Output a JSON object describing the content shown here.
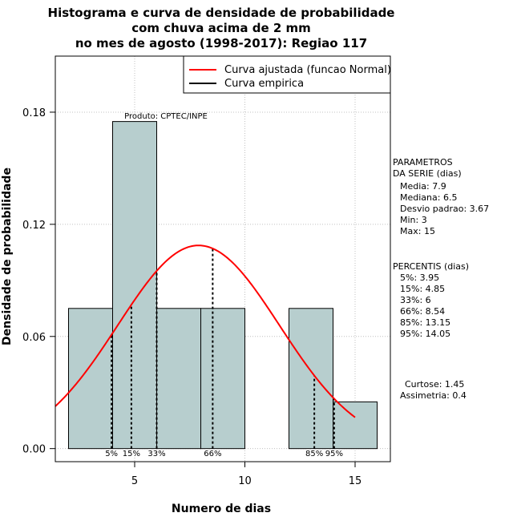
{
  "chart_data": {
    "type": "bar",
    "title_lines": [
      "Histograma e curva de densidade de probabilidade",
      "com chuva acima de 2 mm",
      "no mes de agosto (1998-2017): Regiao 117"
    ],
    "xlabel": "Numero de dias",
    "ylabel": "Densidade de probabilidade",
    "xlim": [
      1.4,
      16.6
    ],
    "ylim": [
      -0.007,
      0.21
    ],
    "x_ticks": [
      5,
      10,
      15
    ],
    "y_ticks": [
      0.0,
      0.06,
      0.12,
      0.18
    ],
    "y_tick_labels": [
      "0.00",
      "0.06",
      "0.12",
      "0.18"
    ],
    "grid": true,
    "bar_color": "#b7cece",
    "bins": [
      {
        "from": 2,
        "to": 4,
        "density": 0.075
      },
      {
        "from": 4,
        "to": 6,
        "density": 0.175
      },
      {
        "from": 6,
        "to": 8,
        "density": 0.075
      },
      {
        "from": 8,
        "to": 10,
        "density": 0.075
      },
      {
        "from": 10,
        "to": 12,
        "density": 0.0
      },
      {
        "from": 12,
        "to": 14,
        "density": 0.075
      },
      {
        "from": 14,
        "to": 16,
        "density": 0.025
      }
    ],
    "normal_curve": {
      "mean": 7.9,
      "sd": 3.67,
      "color": "#ff0000",
      "x_from": 1.4,
      "x_to": 15
    },
    "percentile_lines": [
      {
        "label": "5%",
        "x": 3.95
      },
      {
        "label": "15%",
        "x": 4.85
      },
      {
        "label": "33%",
        "x": 6.0
      },
      {
        "label": "66%",
        "x": 8.54
      },
      {
        "label": "85%",
        "x": 13.15
      },
      {
        "label": "95%",
        "x": 14.05
      }
    ],
    "legend": [
      {
        "label": "Curva ajustada (funcao Normal)",
        "color": "#ff0000"
      },
      {
        "label": "Curva empirica",
        "color": "#000000"
      }
    ],
    "annotation": "Produto: CPTEC/INPE",
    "parametros": {
      "header": [
        "PARAMETROS",
        "DA SERIE (dias)"
      ],
      "lines": [
        "Media: 7.9",
        "Mediana: 6.5",
        "Desvio padrao: 3.67",
        "Min: 3",
        "Max: 15"
      ]
    },
    "percentis": {
      "header": "PERCENTIS (dias)",
      "lines": [
        "5%: 3.95",
        "15%: 4.85",
        "33%: 6",
        "66%: 8.54",
        "85%: 13.15",
        "95%: 14.05"
      ]
    },
    "forma": [
      "Curtose: 1.45",
      "Assimetria: 0.4"
    ]
  }
}
